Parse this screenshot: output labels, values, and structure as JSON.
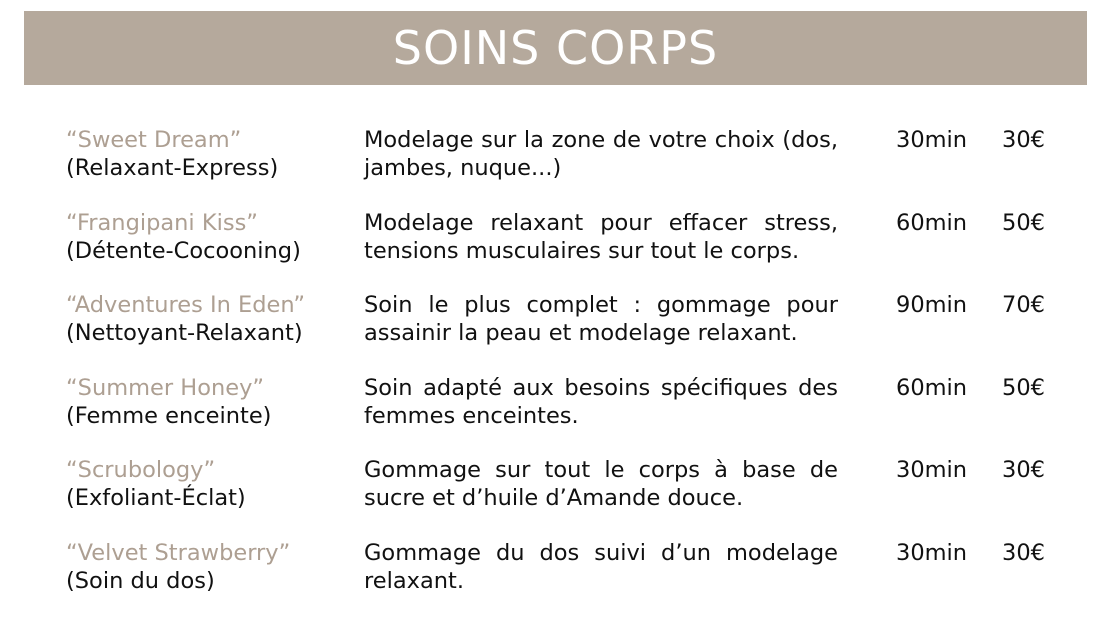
{
  "header": {
    "title": "SOINS CORPS",
    "color": "#b5a99c"
  },
  "name_color": "#ad9f92",
  "items": [
    {
      "name": "“Sweet Dream”",
      "subtitle": "(Relaxant-Express)",
      "description": "Modelage sur la zone de votre choix (dos, jambes, nuque...)",
      "duration": "30min",
      "price": "30€"
    },
    {
      "name": "“Frangipani Kiss”",
      "subtitle": "(Détente-Cocooning)",
      "description": "Modelage relaxant pour effacer stress, tensions musculaires sur tout le corps.",
      "duration": "60min",
      "price": "50€"
    },
    {
      "name": "“Adventures In Eden”",
      "subtitle": "(Nettoyant-Relaxant)",
      "description": "Soin le plus complet : gommage pour assainir la peau et modelage relaxant.",
      "duration": "90min",
      "price": "70€"
    },
    {
      "name": "“Summer Honey”",
      "subtitle": "(Femme enceinte)",
      "description": "Soin adapté aux besoins spécifiques des femmes enceintes.",
      "duration": "60min",
      "price": "50€"
    },
    {
      "name": "“Scrubology”",
      "subtitle": "(Exfoliant-Éclat)",
      "description": "Gommage sur tout le corps à base de sucre et d’huile d’Amande douce.",
      "duration": "30min",
      "price": "30€"
    },
    {
      "name": "“Velvet Strawberry”",
      "subtitle": "(Soin du dos)",
      "description": "Gommage du dos suivi d’un modelage relaxant.",
      "duration": "30min",
      "price": "30€"
    }
  ]
}
